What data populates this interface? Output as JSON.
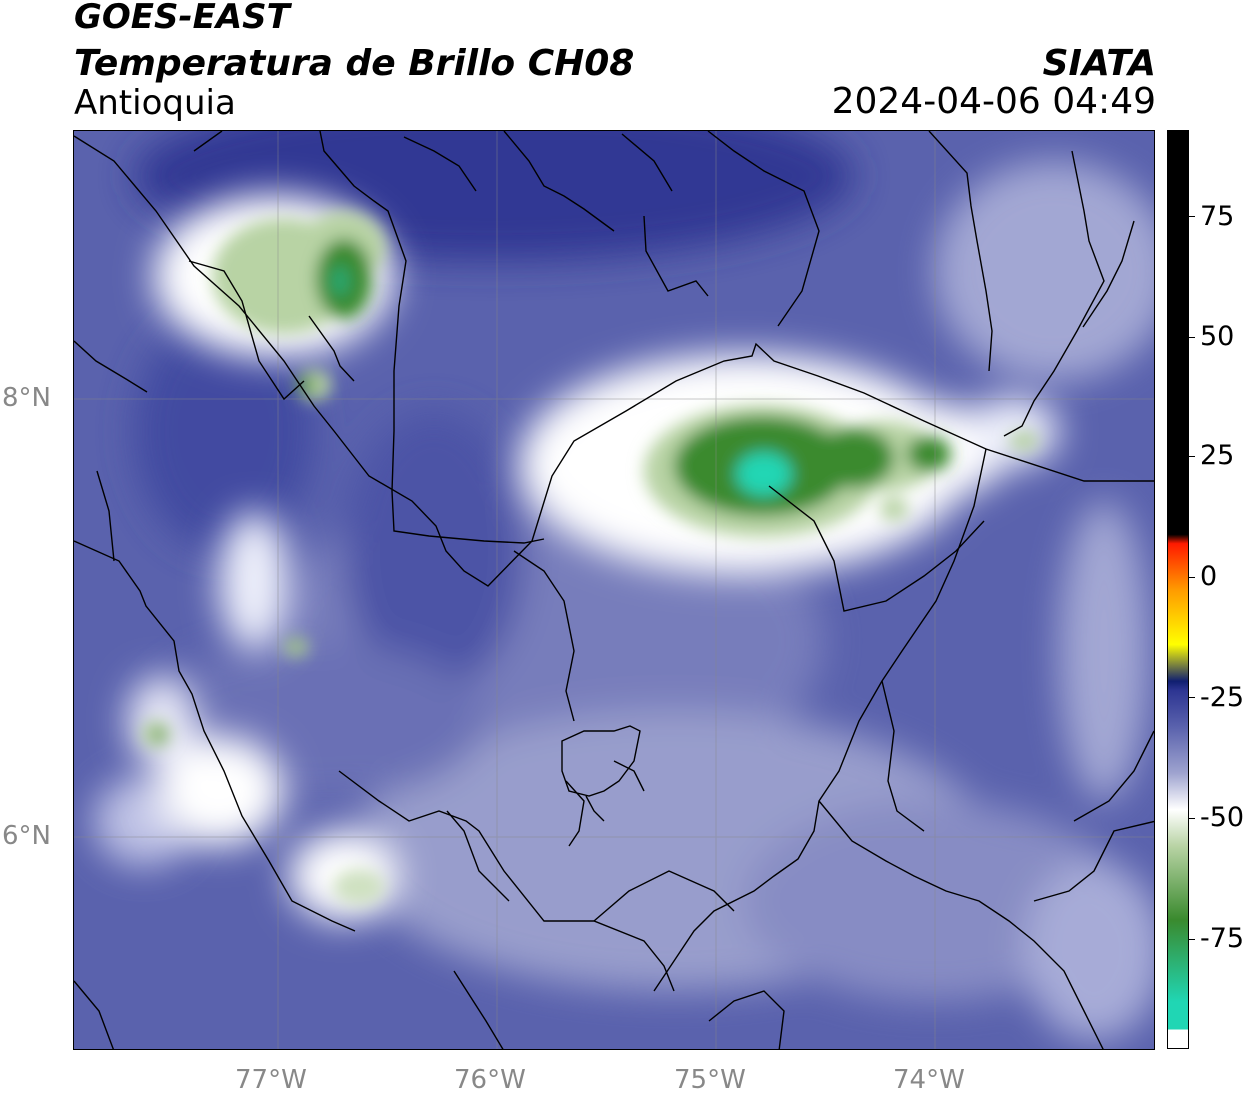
{
  "header": {
    "satellite": "GOES-EAST",
    "product": "Temperatura de Brillo CH08",
    "region": "Antioquia",
    "organization": "SIATA",
    "datetime": "2024-04-06 04:49"
  },
  "map": {
    "longitude_labels": [
      "77°W",
      "76°W",
      "75°W",
      "74°W"
    ],
    "latitude_labels": [
      "8°N",
      "6°N"
    ]
  },
  "colorbar": {
    "tick_labels": [
      "75",
      "50",
      "25",
      "0",
      "-25",
      "-50",
      "-75"
    ],
    "colors": {
      "cold_core": "#20d6b4",
      "deep_green": "#3a8a2e",
      "light_green": "#b8d3a4",
      "white": "#ffffff",
      "light_blue_gray": "#9ea3cf",
      "blue_purple": "#5a62ad",
      "dark_blue": "#2d3592",
      "navy": "#101f70",
      "yellow": "#ffff00",
      "orange": "#ff9a00",
      "red": "#ff1a00",
      "black": "#000000"
    }
  }
}
